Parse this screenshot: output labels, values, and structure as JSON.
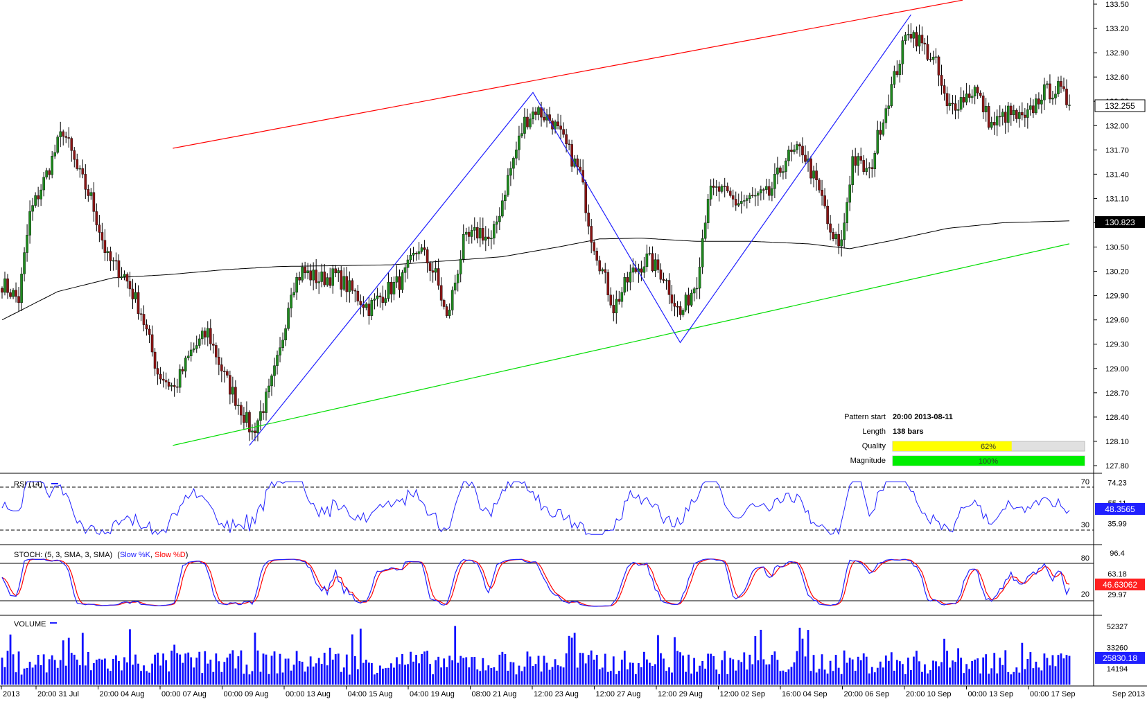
{
  "colors": {
    "bull": "#1e8a1e",
    "bear": "#8a1414",
    "ma": "#000000",
    "resistance": "#ff0000",
    "support": "#00dd00",
    "zigzag": "#2020ff",
    "rsi": "#2020ff",
    "stoch_k": "#2020ff",
    "stoch_d": "#ff0000",
    "volume": "#1010ff",
    "quality_fill": "#ffff00",
    "magnitude_fill": "#00ee00"
  },
  "price_axis": {
    "ticks": [
      "133.50",
      "133.20",
      "132.90",
      "132.60",
      "132.30",
      "132.00",
      "131.70",
      "131.40",
      "131.10",
      "130.80",
      "130.50",
      "130.20",
      "129.90",
      "129.60",
      "129.30",
      "129.00",
      "128.70",
      "128.40",
      "128.10",
      "127.80"
    ],
    "current_price_label": "132.255",
    "ma_price_label": "130.823"
  },
  "time_axis": {
    "labels": [
      "2013",
      "20:00 31 Jul",
      "20:00 04 Aug",
      "00:00 07 Aug",
      "00:00 09 Aug",
      "00:00 13 Aug",
      "04:00 15 Aug",
      "04:00 19 Aug",
      "08:00 21 Aug",
      "12:00 23 Aug",
      "12:00 27 Aug",
      "12:00 29 Aug",
      "12:00 02 Sep",
      "16:00 04 Sep",
      "20:00 06 Sep",
      "20:00 10 Sep",
      "00:00 13 Sep",
      "00:00 17 Sep"
    ],
    "right_label": "Sep 2013"
  },
  "pattern_info": {
    "start_label": "Pattern start",
    "start_value": "20:00 2013-08-11",
    "length_label": "Length",
    "length_value": "138 bars",
    "quality_label": "Quality",
    "quality_value": "62%",
    "quality_fraction": 0.62,
    "magnitude_label": "Magnitude",
    "magnitude_value": "100%",
    "magnitude_fraction": 1.0
  },
  "rsi": {
    "title": "RSI (14)",
    "level_high": "70",
    "level_low": "30",
    "axis_ticks": [
      "74.23",
      "55.11",
      "35.99"
    ],
    "current_label": "48.3565"
  },
  "stoch": {
    "title": "STOCH: (5, 3, SMA, 3, SMA)",
    "k_label": "Slow %K",
    "d_label": "Slow %D",
    "level_high": "80",
    "level_low": "20",
    "axis_ticks": [
      "96.4",
      "63.18",
      "29.97"
    ],
    "current_label": "46.63062"
  },
  "volume": {
    "title": "VOLUME",
    "axis_ticks": [
      "52327",
      "33260",
      "14194"
    ],
    "current_label": "25830.18"
  },
  "chart_data": {
    "type": "candlestick",
    "price_range": [
      127.8,
      133.5
    ],
    "pattern": "ascending channel",
    "resistance_line": [
      {
        "x": 0.16,
        "price": 131.72
      },
      {
        "x": 0.9,
        "price": 133.55
      }
    ],
    "support_line": [
      {
        "x": 0.16,
        "price": 128.05
      },
      {
        "x": 1.0,
        "price": 130.54
      }
    ],
    "zigzag_pivots": [
      {
        "bar": 89,
        "price": 128.05
      },
      {
        "bar": 191,
        "price": 132.41
      },
      {
        "bar": 244,
        "price": 129.32
      },
      {
        "bar": 327,
        "price": 133.37
      }
    ],
    "price_path": [
      [
        0,
        130.05
      ],
      [
        6,
        129.85
      ],
      [
        10,
        130.9
      ],
      [
        16,
        131.4
      ],
      [
        22,
        131.95
      ],
      [
        27,
        131.45
      ],
      [
        32,
        131.1
      ],
      [
        38,
        130.35
      ],
      [
        44,
        130.15
      ],
      [
        50,
        129.7
      ],
      [
        56,
        128.95
      ],
      [
        62,
        128.75
      ],
      [
        68,
        129.2
      ],
      [
        74,
        129.45
      ],
      [
        80,
        128.9
      ],
      [
        86,
        128.5
      ],
      [
        90,
        128.2
      ],
      [
        96,
        128.7
      ],
      [
        100,
        129.2
      ],
      [
        104,
        130.0
      ],
      [
        108,
        130.2
      ],
      [
        114,
        130.1
      ],
      [
        120,
        130.15
      ],
      [
        126,
        129.95
      ],
      [
        132,
        129.75
      ],
      [
        138,
        129.95
      ],
      [
        144,
        130.1
      ],
      [
        150,
        130.5
      ],
      [
        156,
        130.15
      ],
      [
        160,
        129.6
      ],
      [
        166,
        130.55
      ],
      [
        172,
        130.7
      ],
      [
        176,
        130.55
      ],
      [
        182,
        131.35
      ],
      [
        188,
        132.05
      ],
      [
        192,
        132.2
      ],
      [
        198,
        132.05
      ],
      [
        202,
        131.8
      ],
      [
        208,
        131.4
      ],
      [
        212,
        130.65
      ],
      [
        216,
        130.2
      ],
      [
        220,
        129.75
      ],
      [
        226,
        130.15
      ],
      [
        232,
        130.35
      ],
      [
        238,
        130.15
      ],
      [
        244,
        129.65
      ],
      [
        250,
        130.1
      ],
      [
        254,
        131.15
      ],
      [
        258,
        131.2
      ],
      [
        264,
        131.05
      ],
      [
        270,
        131.1
      ],
      [
        276,
        131.15
      ],
      [
        282,
        131.6
      ],
      [
        288,
        131.7
      ],
      [
        292,
        131.35
      ],
      [
        296,
        131.0
      ],
      [
        298,
        130.6
      ],
      [
        302,
        130.55
      ],
      [
        306,
        131.6
      ],
      [
        312,
        131.4
      ],
      [
        316,
        132.0
      ],
      [
        322,
        132.7
      ],
      [
        326,
        133.2
      ],
      [
        330,
        133.05
      ],
      [
        336,
        132.75
      ],
      [
        340,
        132.2
      ],
      [
        344,
        132.3
      ],
      [
        350,
        132.45
      ],
      [
        356,
        132.0
      ],
      [
        362,
        132.15
      ],
      [
        368,
        132.05
      ],
      [
        374,
        132.4
      ],
      [
        380,
        132.45
      ],
      [
        384,
        132.255
      ]
    ],
    "ma_path": [
      [
        0,
        129.6
      ],
      [
        20,
        129.95
      ],
      [
        40,
        130.12
      ],
      [
        60,
        130.16
      ],
      [
        80,
        130.22
      ],
      [
        100,
        130.26
      ],
      [
        120,
        130.27
      ],
      [
        140,
        130.28
      ],
      [
        160,
        130.33
      ],
      [
        180,
        130.38
      ],
      [
        200,
        130.5
      ],
      [
        215,
        130.6
      ],
      [
        230,
        130.61
      ],
      [
        250,
        130.57
      ],
      [
        270,
        130.57
      ],
      [
        290,
        130.54
      ],
      [
        305,
        130.48
      ],
      [
        320,
        130.58
      ],
      [
        340,
        130.73
      ],
      [
        360,
        130.8
      ],
      [
        384,
        130.823
      ]
    ],
    "bars": 385
  }
}
